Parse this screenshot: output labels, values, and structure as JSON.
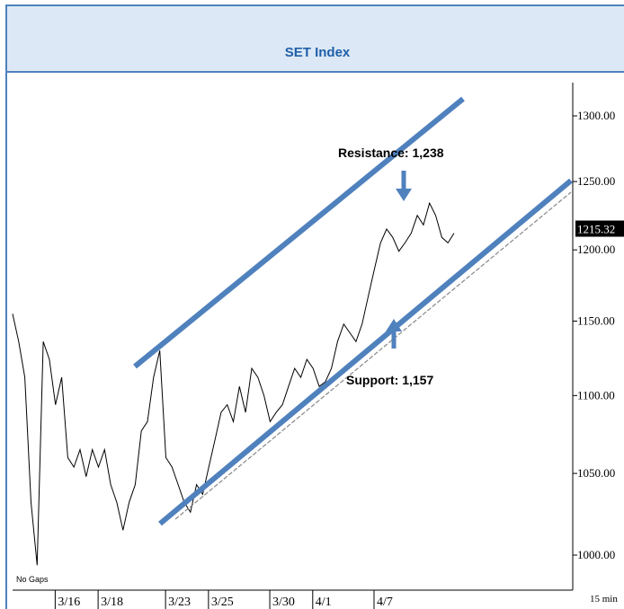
{
  "chart_data": {
    "type": "line",
    "title": "SET Index",
    "values": [
      1155,
      1136,
      1112,
      1032,
      994,
      1136,
      1124,
      1094,
      1112,
      1060,
      1054,
      1065,
      1048,
      1065,
      1054,
      1065,
      1043,
      1032,
      1015,
      1032,
      1043,
      1077,
      1083,
      1112,
      1130,
      1060,
      1054,
      1043,
      1032,
      1026,
      1043,
      1037,
      1054,
      1071,
      1089,
      1094,
      1083,
      1106,
      1089,
      1118,
      1112,
      1100,
      1083,
      1089,
      1094,
      1106,
      1118,
      1112,
      1124,
      1118,
      1106,
      1109,
      1118,
      1136,
      1148,
      1142,
      1136,
      1148,
      1167,
      1186,
      1205,
      1215,
      1209,
      1199,
      1205,
      1212,
      1225,
      1218,
      1234,
      1225,
      1209,
      1205,
      1212
    ],
    "color": "#000000",
    "xlim": [
      0,
      72
    ],
    "xticks": [
      {
        "value": 9,
        "label": "3/16"
      },
      {
        "value": 16,
        "label": "3/18"
      },
      {
        "value": 27,
        "label": "3/23"
      },
      {
        "value": 34,
        "label": "3/25"
      },
      {
        "value": 44,
        "label": "3/30"
      },
      {
        "value": 51,
        "label": "4/1"
      },
      {
        "value": 61,
        "label": "4/7"
      }
    ],
    "ylim": [
      1000,
      1300
    ],
    "yscale": "log",
    "yticks": [
      {
        "value": 1000,
        "label": "1000.00"
      },
      {
        "value": 1050,
        "label": "1050.00"
      },
      {
        "value": 1100,
        "label": "1100.00"
      },
      {
        "value": 1150,
        "label": "1150.00"
      },
      {
        "value": 1200,
        "label": "1200.00"
      },
      {
        "value": 1250,
        "label": "1250.00"
      },
      {
        "value": 1300,
        "label": "1300.00"
      }
    ],
    "last_value": 1215.32,
    "resistance_label": "Resistance:  1,238",
    "support_label": "Support: 1,157",
    "gaps_label": "No Gaps",
    "interval_label": "15 min"
  }
}
